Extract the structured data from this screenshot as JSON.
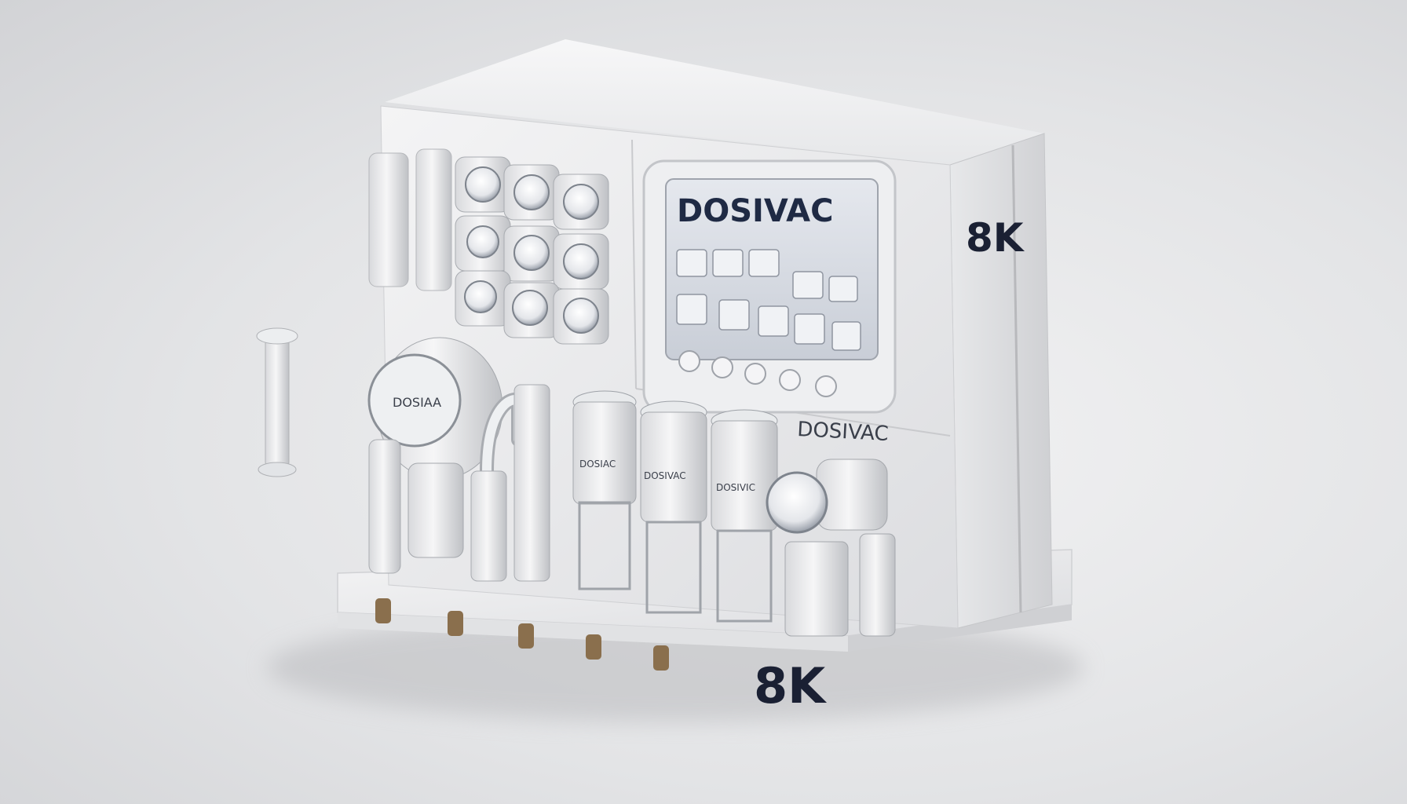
{
  "image": {
    "screen_brand": "DOSIVAC",
    "screen_small_header": "",
    "side_badge": "8K",
    "front_badge": "8K",
    "panel_brand": "DOSIVAC",
    "pump_label": "DOSIAA",
    "canister_labels": [
      "DOSIAC",
      "DOSIVAC",
      "DOSIVIC"
    ]
  },
  "colors": {
    "body_white": "#f3f3f4",
    "shadow_grey": "#c9cacd",
    "text_navy": "#1f2a44",
    "screen_bg": "#d9dde4"
  }
}
